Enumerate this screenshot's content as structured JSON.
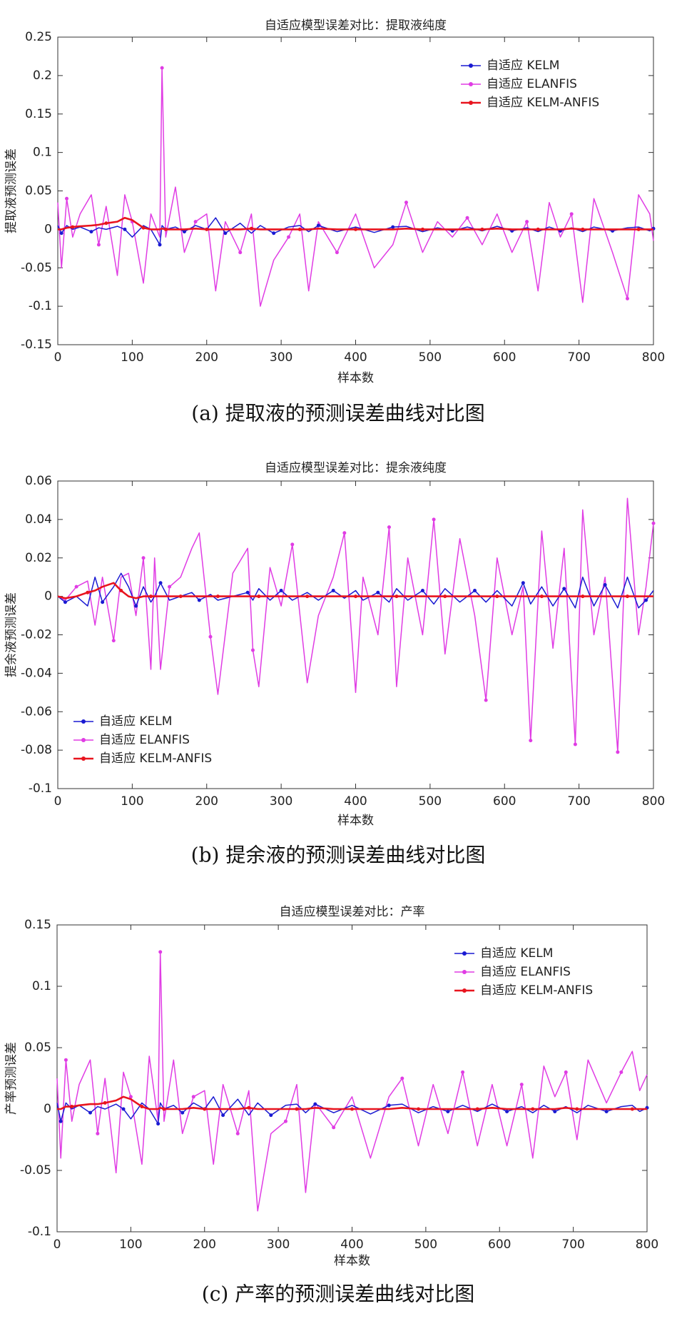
{
  "chart_data": [
    {
      "type": "line",
      "title": "自适应模型误差对比：提取液纯度",
      "xlabel": "样本数",
      "ylabel": "提取液预测误差",
      "caption": "(a) 提取液的预测误差曲线对比图",
      "legend": "upper right",
      "xlim": [
        0,
        800
      ],
      "xticks": [
        0,
        100,
        200,
        300,
        400,
        500,
        600,
        700,
        800
      ],
      "ylim": [
        -0.15,
        0.25
      ],
      "yticks": [
        -0.15,
        -0.1,
        -0.05,
        0,
        0.05,
        0.1,
        0.15,
        0.2,
        0.25
      ],
      "x": [
        0,
        5,
        12,
        20,
        30,
        45,
        55,
        65,
        80,
        90,
        100,
        115,
        125,
        137,
        140,
        145,
        158,
        170,
        185,
        200,
        212,
        225,
        245,
        260,
        272,
        290,
        310,
        325,
        337,
        350,
        375,
        400,
        425,
        450,
        468,
        490,
        510,
        530,
        550,
        570,
        590,
        610,
        630,
        645,
        660,
        675,
        690,
        705,
        720,
        745,
        765,
        780,
        795,
        800
      ],
      "series": [
        {
          "name": "自适应 KELM",
          "color": "#1a1ad2",
          "values": [
            0.005,
            -0.005,
            0.005,
            0,
            0.003,
            -0.003,
            0.002,
            0,
            0.004,
            0,
            -0.01,
            0.005,
            0,
            -0.02,
            0.005,
            0,
            0.003,
            -0.003,
            0.005,
            0,
            0.015,
            -0.005,
            0.008,
            -0.005,
            0.005,
            -0.005,
            0.003,
            0.005,
            -0.003,
            0.005,
            -0.003,
            0.003,
            -0.004,
            0.003,
            0.004,
            -0.003,
            0.002,
            -0.002,
            0.003,
            -0.002,
            0.004,
            -0.002,
            0.002,
            -0.003,
            0.003,
            -0.002,
            0.002,
            -0.003,
            0.003,
            -0.002,
            0.002,
            0.003,
            -0.002,
            0.001
          ]
        },
        {
          "name": "自适应 ELANFIS",
          "color": "#e03ce4",
          "values": [
            0.035,
            -0.05,
            0.04,
            -0.01,
            0.02,
            0.045,
            -0.02,
            0.03,
            -0.06,
            0.045,
            0.01,
            -0.07,
            0.02,
            -0.01,
            0.21,
            -0.01,
            0.055,
            -0.03,
            0.01,
            0.02,
            -0.08,
            0.01,
            -0.03,
            0.02,
            -0.1,
            -0.04,
            -0.01,
            0.02,
            -0.08,
            0.01,
            -0.03,
            0.02,
            -0.05,
            -0.02,
            0.035,
            -0.03,
            0.01,
            -0.01,
            0.015,
            -0.02,
            0.02,
            -0.03,
            0.01,
            -0.08,
            0.035,
            -0.01,
            0.02,
            -0.095,
            0.04,
            -0.03,
            -0.09,
            0.045,
            0.02,
            -0.015
          ]
        },
        {
          "name": "自适应 KELM-ANFIS",
          "color": "#e8141e",
          "values": [
            0,
            0,
            0.002,
            0.003,
            0.004,
            0.005,
            0.006,
            0.008,
            0.01,
            0.015,
            0.012,
            0.002,
            0,
            0,
            0.001,
            0,
            0,
            0,
            0.001,
            0,
            0,
            0,
            0,
            0.001,
            0,
            0,
            0,
            0,
            0,
            0.001,
            0,
            0,
            0,
            0,
            0.001,
            0,
            0,
            0,
            0,
            0,
            0.001,
            0,
            0,
            0,
            0,
            0,
            0.001,
            0,
            0,
            0,
            0,
            0,
            0,
            0
          ]
        }
      ]
    },
    {
      "type": "line",
      "title": "自适应模型误差对比：提余液纯度",
      "xlabel": "样本数",
      "ylabel": "提余液预测误差",
      "caption": "(b) 提余液的预测误差曲线对比图",
      "legend": "lower left",
      "xlim": [
        0,
        800
      ],
      "xticks": [
        0,
        100,
        200,
        300,
        400,
        500,
        600,
        700,
        800
      ],
      "ylim": [
        -0.1,
        0.06
      ],
      "yticks": [
        -0.1,
        -0.08,
        -0.06,
        -0.04,
        -0.02,
        0,
        0.02,
        0.04,
        0.06
      ],
      "x": [
        0,
        10,
        25,
        40,
        50,
        60,
        75,
        85,
        95,
        105,
        115,
        125,
        130,
        138,
        150,
        165,
        180,
        190,
        205,
        215,
        235,
        255,
        262,
        270,
        285,
        300,
        315,
        335,
        350,
        370,
        385,
        400,
        410,
        430,
        445,
        455,
        470,
        490,
        505,
        520,
        540,
        560,
        575,
        590,
        610,
        625,
        635,
        650,
        665,
        680,
        695,
        705,
        720,
        735,
        752,
        765,
        780,
        790,
        800
      ],
      "series": [
        {
          "name": "自适应 KELM",
          "color": "#1a1ad2",
          "values": [
            0,
            -0.003,
            0,
            -0.005,
            0.01,
            -0.003,
            0.005,
            0.012,
            0.005,
            -0.005,
            0.005,
            -0.003,
            0,
            0.007,
            -0.002,
            0,
            0.002,
            -0.002,
            0.001,
            -0.002,
            0,
            0.002,
            -0.002,
            0.004,
            -0.002,
            0.003,
            -0.002,
            0.002,
            -0.002,
            0.003,
            -0.001,
            0.003,
            -0.002,
            0.002,
            -0.003,
            0.004,
            -0.002,
            0.003,
            -0.004,
            0.004,
            -0.003,
            0.003,
            -0.003,
            0.003,
            -0.005,
            0.007,
            -0.004,
            0.005,
            -0.005,
            0.004,
            -0.006,
            0.01,
            -0.005,
            0.006,
            -0.006,
            0.01,
            -0.006,
            -0.002,
            0.003
          ]
        },
        {
          "name": "自适应 ELANFIS",
          "color": "#e03ce4",
          "values": [
            0,
            -0.002,
            0.005,
            0.008,
            -0.015,
            0.01,
            -0.023,
            0.01,
            0.012,
            -0.01,
            0.02,
            -0.038,
            0.02,
            -0.038,
            0.005,
            0.01,
            0.025,
            0.033,
            -0.021,
            -0.051,
            0.012,
            0.025,
            -0.028,
            -0.047,
            0.015,
            -0.005,
            0.027,
            -0.045,
            -0.01,
            0.01,
            0.033,
            -0.05,
            0.01,
            -0.02,
            0.036,
            -0.047,
            0.02,
            -0.02,
            0.04,
            -0.03,
            0.03,
            -0.01,
            -0.054,
            0.02,
            -0.02,
            0.005,
            -0.075,
            0.034,
            -0.027,
            0.025,
            -0.077,
            0.045,
            -0.02,
            0.01,
            -0.081,
            0.051,
            -0.02,
            0.005,
            0.038
          ]
        },
        {
          "name": "自适应 KELM-ANFIS",
          "color": "#e8141e",
          "values": [
            0,
            -0.001,
            0,
            0.002,
            0.003,
            0.005,
            0.007,
            0.003,
            0,
            -0.001,
            0,
            0,
            0,
            0,
            0,
            0,
            0,
            0,
            0,
            0,
            0,
            0,
            0,
            0,
            0,
            0,
            0,
            0,
            0,
            0,
            0,
            0,
            0,
            0,
            0,
            0,
            0,
            0,
            0,
            0,
            0,
            0,
            0,
            0,
            0,
            0,
            0,
            0,
            0,
            0,
            0,
            0,
            0,
            0,
            0,
            0,
            0,
            0,
            0
          ]
        }
      ]
    },
    {
      "type": "line",
      "title": "自适应模型误差对比：产率",
      "xlabel": "样本数",
      "ylabel": "产率预测误差",
      "caption": "(c) 产率的预测误差曲线对比图",
      "legend": "upper right",
      "xlim": [
        0,
        800
      ],
      "xticks": [
        0,
        100,
        200,
        300,
        400,
        500,
        600,
        700,
        800
      ],
      "ylim": [
        -0.1,
        0.15
      ],
      "yticks": [
        -0.1,
        -0.05,
        0,
        0.05,
        0.1,
        0.15
      ],
      "x": [
        0,
        5,
        12,
        20,
        30,
        45,
        55,
        65,
        80,
        90,
        100,
        115,
        125,
        137,
        140,
        145,
        158,
        170,
        185,
        200,
        212,
        225,
        245,
        260,
        272,
        290,
        310,
        325,
        337,
        350,
        375,
        400,
        425,
        450,
        468,
        490,
        510,
        530,
        550,
        570,
        590,
        610,
        630,
        645,
        660,
        675,
        690,
        705,
        720,
        745,
        765,
        780,
        790,
        800
      ],
      "series": [
        {
          "name": "自适应 KELM",
          "color": "#1a1ad2",
          "values": [
            0.005,
            -0.01,
            0.005,
            0,
            0.003,
            -0.003,
            0.002,
            0,
            0.004,
            0,
            -0.008,
            0.005,
            0,
            -0.012,
            0.005,
            0,
            0.003,
            -0.003,
            0.005,
            0,
            0.01,
            -0.005,
            0.008,
            -0.005,
            0.005,
            -0.005,
            0.003,
            0.004,
            -0.003,
            0.004,
            -0.003,
            0.003,
            -0.004,
            0.003,
            0.004,
            -0.003,
            0.002,
            -0.002,
            0.003,
            -0.002,
            0.004,
            -0.002,
            0.002,
            -0.003,
            0.003,
            -0.002,
            0.002,
            -0.003,
            0.003,
            -0.002,
            0.002,
            0.003,
            -0.002,
            0.001
          ]
        },
        {
          "name": "自适应 ELANFIS",
          "color": "#e03ce4",
          "values": [
            0.025,
            -0.04,
            0.04,
            -0.01,
            0.02,
            0.04,
            -0.02,
            0.025,
            -0.052,
            0.03,
            0.01,
            -0.045,
            0.043,
            -0.01,
            0.128,
            -0.01,
            0.04,
            -0.02,
            0.01,
            0.015,
            -0.045,
            0.02,
            -0.02,
            0.015,
            -0.083,
            -0.02,
            -0.01,
            0.02,
            -0.068,
            0.005,
            -0.015,
            0.01,
            -0.04,
            0.01,
            0.025,
            -0.03,
            0.02,
            -0.02,
            0.03,
            -0.03,
            0.02,
            -0.03,
            0.02,
            -0.04,
            0.035,
            0.01,
            0.03,
            -0.025,
            0.04,
            0.005,
            0.03,
            0.047,
            0.015,
            0.028
          ]
        },
        {
          "name": "自适应 KELM-ANFIS",
          "color": "#e8141e",
          "values": [
            0,
            0,
            0.002,
            0.002,
            0.003,
            0.004,
            0.004,
            0.005,
            0.007,
            0.01,
            0.008,
            0.002,
            0,
            0,
            0.001,
            0,
            0,
            0,
            0.001,
            0,
            0,
            0,
            0,
            0.001,
            0,
            0,
            0,
            0,
            0,
            0.001,
            0,
            0,
            0,
            0,
            0.001,
            0,
            0,
            0,
            0,
            0,
            0.001,
            0,
            0,
            0,
            0,
            0,
            0.001,
            0,
            0,
            0,
            0,
            0,
            0,
            0
          ]
        }
      ]
    }
  ]
}
